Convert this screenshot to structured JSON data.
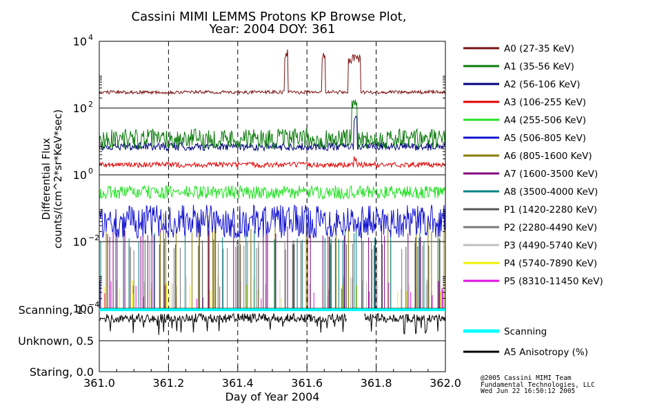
{
  "chart_data": {
    "type": "line",
    "title_line1": "Cassini MIMI LEMMS Protons KP Browse Plot,",
    "title_line2": "Year: 2004 DOY: 361",
    "xlabel": "Day of Year 2004",
    "ylabel_line1": "Differential Flux",
    "ylabel_line2": "counts/(cm^2*sr*KeV*sec)",
    "xlim": [
      361.0,
      362.0
    ],
    "x_ticks": [
      "361.0",
      "361.2",
      "361.4",
      "361.6",
      "361.8",
      "362.0"
    ],
    "x_tick_values": [
      361.0,
      361.2,
      361.4,
      361.6,
      361.8,
      362.0
    ],
    "y_scale": "log",
    "ylim": [
      0.0001,
      10000
    ],
    "y_tick_base": "10",
    "y_ticks": [
      {
        "value": 10000,
        "exp": "4"
      },
      {
        "value": 100,
        "exp": "2"
      },
      {
        "value": 1,
        "exp": "0"
      },
      {
        "value": 0.01,
        "exp": "−2"
      },
      {
        "value": 0.0001,
        "exp": "−4"
      }
    ],
    "grid": true,
    "legend_placement": "right",
    "series": [
      {
        "name": "A0 (27-35 KeV)",
        "color": "#7a1010",
        "base": 300,
        "noise": 0.05,
        "spikes": [
          [
            361.535,
            361.545,
            6000
          ],
          [
            361.643,
            361.652,
            5000
          ],
          [
            361.72,
            361.755,
            4000
          ]
        ]
      },
      {
        "name": "A1 (35-56 KeV)",
        "color": "#0a7a0a",
        "base": 12,
        "noise": 0.3,
        "spikes": [
          [
            361.73,
            361.745,
            200
          ]
        ]
      },
      {
        "name": "A2 (56-106 KeV)",
        "color": "#000080",
        "base": 7,
        "noise": 0.12,
        "spikes": [
          [
            361.735,
            361.745,
            60
          ]
        ]
      },
      {
        "name": "A3 (106-255 KeV)",
        "color": "#e00000",
        "base": 2,
        "noise": 0.08,
        "spikes": [
          [
            361.735,
            361.745,
            3.5
          ]
        ]
      },
      {
        "name": "A4 (255-506 KeV)",
        "color": "#22e022",
        "base": 0.3,
        "noise": 0.2,
        "spikes": []
      },
      {
        "name": "A5 (506-805 KeV)",
        "color": "#1010d0",
        "base": 0.04,
        "noise": 0.5,
        "spikes": []
      },
      {
        "name": "A6 (805-1600 KeV)",
        "color": "#8a7a00",
        "base": 0.012,
        "noise": 0.3,
        "spikes": []
      },
      {
        "name": "A7 (1600-3500 KeV)",
        "color": "#800080",
        "base": 0.007,
        "noise": 0.2,
        "spikes": []
      },
      {
        "name": "A8 (3500-4000 KeV)",
        "color": "#008080",
        "base": 0.005,
        "noise": 0.2,
        "spikes": []
      },
      {
        "name": "P1 (1420-2280 KeV)",
        "color": "#555555",
        "base": 0.003,
        "noise": 0.15,
        "spikes": []
      },
      {
        "name": "P2 (2280-4490 KeV)",
        "color": "#7a7a7a",
        "base": 0.0025,
        "noise": 0.15,
        "spikes": []
      },
      {
        "name": "P3 (4490-5740 KeV)",
        "color": "#c0c0c0",
        "base": 0.0002,
        "noise": 0.2,
        "spikes": []
      },
      {
        "name": "P4 (5740-7890 KeV)",
        "color": "#f0f000",
        "base": 0.00015,
        "noise": 0.4,
        "spikes": []
      },
      {
        "name": "P5 (8310-11450 KeV)",
        "color": "#e010e0",
        "base": 0.00012,
        "noise": 0.3,
        "spikes": []
      }
    ],
    "mode_panel": {
      "labels": [
        "Scanning, 1.0",
        "Unknown, 0.5",
        "Staring, 0.0"
      ],
      "levels": [
        1.0,
        0.5,
        0.0
      ],
      "series": [
        {
          "name": "Scanning",
          "color": "#00ffff",
          "value": 1.0
        },
        {
          "name": "A5 Anisotropy (%)",
          "color": "#000000",
          "value": 0.88
        }
      ]
    }
  },
  "credits": {
    "line1": "@2005 Cassini MIMI Team",
    "line2": "Fundamental Technologies, LLC",
    "line3": "Wed Jun 22 16:50:12 2005"
  }
}
